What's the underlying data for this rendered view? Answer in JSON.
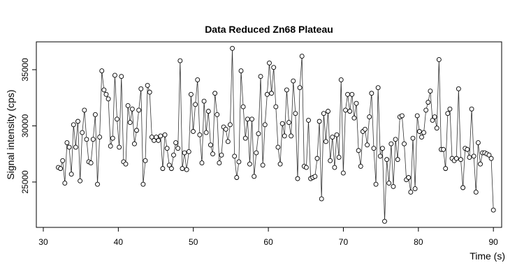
{
  "chart_data": {
    "type": "line",
    "title": "Data Reduced Zn68 Plateau",
    "x_label": "Time (s)",
    "y_label": "Signal intensity (cps)",
    "color": "#000000",
    "xlim": [
      29.07,
      91.1
    ],
    "ylim": [
      20960,
      37480
    ],
    "xticks": [
      30,
      40,
      50,
      60,
      70,
      80,
      90
    ],
    "yticks": [
      25000,
      30000,
      35000
    ],
    "x": [
      32,
      32.29,
      32.58,
      32.87,
      33.16,
      33.45,
      33.74,
      34.03,
      34.32,
      34.61,
      34.9,
      35.19,
      35.48,
      35.77,
      36.06,
      36.35,
      36.64,
      36.93,
      37.22,
      37.51,
      37.8,
      38.09,
      38.38,
      38.67,
      38.96,
      39.25,
      39.54,
      39.83,
      40.12,
      40.41,
      40.7,
      40.99,
      41.28,
      41.57,
      41.86,
      42.15,
      42.44,
      42.73,
      43.02,
      43.31,
      43.6,
      43.89,
      44.18,
      44.47,
      44.76,
      45.05,
      45.34,
      45.63,
      45.92,
      46.21,
      46.5,
      46.79,
      47.08,
      47.37,
      47.66,
      47.95,
      48.24,
      48.53,
      48.82,
      49.11,
      49.4,
      49.69,
      49.98,
      50.27,
      50.56,
      50.85,
      51.14,
      51.43,
      51.72,
      52.01,
      52.3,
      52.59,
      52.88,
      53.17,
      53.46,
      53.75,
      54.04,
      54.33,
      54.62,
      54.91,
      55.2,
      55.49,
      55.78,
      56.07,
      56.36,
      56.65,
      56.94,
      57.23,
      57.52,
      57.81,
      58.1,
      58.39,
      58.68,
      58.97,
      59.26,
      59.55,
      59.84,
      60.13,
      60.42,
      60.71,
      61.0,
      61.29,
      61.58,
      61.87,
      62.16,
      62.45,
      62.74,
      63.03,
      63.32,
      63.61,
      63.9,
      64.19,
      64.48,
      64.77,
      65.06,
      65.35,
      65.64,
      65.93,
      66.22,
      66.51,
      66.8,
      67.09,
      67.38,
      67.67,
      67.96,
      68.25,
      68.54,
      68.83,
      69.12,
      69.41,
      69.7,
      69.99,
      70.28,
      70.57,
      70.86,
      71.15,
      71.44,
      71.73,
      72.02,
      72.31,
      72.6,
      72.89,
      73.18,
      73.47,
      73.76,
      74.05,
      74.34,
      74.63,
      74.92,
      75.21,
      75.5,
      75.79,
      76.08,
      76.37,
      76.66,
      76.95,
      77.24,
      77.53,
      77.82,
      78.11,
      78.4,
      78.69,
      78.98,
      79.27,
      79.56,
      79.85,
      80.14,
      80.43,
      80.72,
      81.01,
      81.3,
      81.59,
      81.88,
      82.17,
      82.46,
      82.75,
      83.04,
      83.33,
      83.62,
      83.91,
      84.2,
      84.49,
      84.78,
      85.07,
      85.36,
      85.65,
      85.94,
      86.23,
      86.52,
      86.81,
      87.1,
      87.39,
      87.68,
      87.97,
      88.26,
      88.55,
      88.84,
      89.13,
      89.42,
      89.71,
      90.0
    ],
    "values": [
      26300,
      26200,
      26900,
      24900,
      28500,
      28100,
      25700,
      30100,
      28100,
      30400,
      25100,
      29400,
      31400,
      28800,
      26800,
      26700,
      28800,
      31000,
      24800,
      29000,
      34900,
      33200,
      32800,
      32400,
      28200,
      28900,
      34500,
      30600,
      28100,
      34400,
      26800,
      26600,
      31800,
      30300,
      31500,
      28400,
      29600,
      31400,
      33300,
      24800,
      26900,
      33600,
      33000,
      29000,
      28700,
      29000,
      28700,
      29100,
      26200,
      29200,
      28000,
      26500,
      26200,
      27400,
      28500,
      28000,
      35800,
      26200,
      27600,
      26100,
      27700,
      32800,
      29500,
      31900,
      34100,
      29200,
      26700,
      32200,
      29400,
      31300,
      28300,
      27500,
      32900,
      31000,
      26700,
      27400,
      29900,
      29700,
      28600,
      30100,
      36900,
      27300,
      25400,
      26800,
      34900,
      31700,
      28900,
      30600,
      26600,
      30600,
      25500,
      27600,
      29300,
      34400,
      26500,
      30100,
      32800,
      35600,
      32900,
      35200,
      31700,
      28100,
      26600,
      30200,
      29100,
      33200,
      30300,
      29100,
      34000,
      31100,
      25300,
      33400,
      36200,
      26400,
      26300,
      30500,
      25300,
      25400,
      25500,
      27100,
      30400,
      23500,
      31100,
      28600,
      31300,
      26900,
      29000,
      26300,
      29200,
      27200,
      34100,
      25800,
      31400,
      32800,
      31300,
      32800,
      30700,
      32000,
      27800,
      26400,
      29500,
      29700,
      28300,
      30800,
      32900,
      28000,
      24800,
      33400,
      27300,
      28000,
      21500,
      27000,
      24900,
      28400,
      24600,
      28800,
      27000,
      30800,
      30900,
      28400,
      25200,
      25400,
      24100,
      28900,
      24400,
      30900,
      29500,
      29000,
      29400,
      31400,
      32100,
      33100,
      30500,
      30800,
      29800,
      35900,
      27900,
      27900,
      26200,
      31100,
      31500,
      27100,
      26900,
      27100,
      33300,
      27000,
      24500,
      28000,
      27900,
      27200,
      31500,
      27300,
      24100,
      28500,
      26600,
      27600,
      27600,
      27500,
      27400,
      27100,
      22500
    ]
  }
}
